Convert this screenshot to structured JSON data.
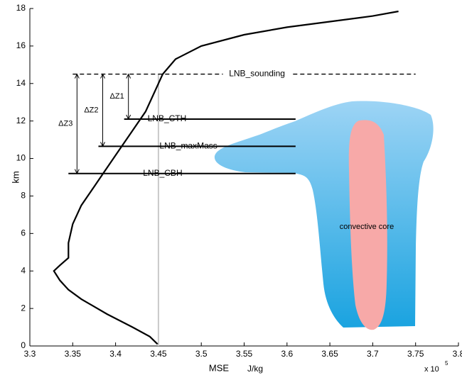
{
  "chart_data": {
    "type": "line",
    "xlabel": "MSE",
    "xunit": "J/kg",
    "ylabel": "km",
    "x_multiplier": "x 10",
    "x_exponent": "5",
    "xlim": [
      3.3,
      3.8
    ],
    "xticks": [
      3.3,
      3.35,
      3.4,
      3.45,
      3.5,
      3.55,
      3.6,
      3.65,
      3.7,
      3.75,
      3.8
    ],
    "ylim": [
      0,
      18
    ],
    "yticks": [
      0,
      2,
      4,
      6,
      8,
      10,
      12,
      14,
      16,
      18
    ],
    "series": [
      {
        "color": "#000000",
        "x": [
          3.449,
          3.44,
          3.42,
          3.39,
          3.36,
          3.345,
          3.335,
          3.328,
          3.335,
          3.345,
          3.345,
          3.35,
          3.36,
          3.375,
          3.39,
          3.405,
          3.42,
          3.435,
          3.445,
          3.455,
          3.47,
          3.5,
          3.55,
          3.6,
          3.65,
          3.7,
          3.73
        ],
        "values": [
          0.1,
          0.5,
          1.0,
          1.7,
          2.5,
          3.0,
          3.5,
          4.0,
          4.3,
          4.7,
          5.5,
          6.5,
          7.5,
          8.5,
          9.5,
          10.5,
          11.5,
          12.5,
          13.5,
          14.5,
          15.3,
          16.0,
          16.6,
          17.0,
          17.3,
          17.6,
          17.85
        ]
      }
    ],
    "reference_line": {
      "x": 3.45,
      "ylim": [
        0,
        14.5
      ],
      "color": "#c8c8c8"
    },
    "levels": [
      {
        "label": "LNB_sounding",
        "y": 14.5,
        "x": [
          3.35,
          3.75
        ],
        "label_x": 3.565,
        "dashed": true
      },
      {
        "label": "LNB_CTH",
        "y": 12.1,
        "x": [
          3.41,
          3.61
        ],
        "label_x": 3.46,
        "dashed": false
      },
      {
        "label": "LNB_maxMass",
        "y": 10.65,
        "x": [
          3.38,
          3.61
        ],
        "label_x": 3.485,
        "dashed": false
      },
      {
        "label": "LNB_CBH",
        "y": 9.2,
        "x": [
          3.345,
          3.61
        ],
        "label_x": 3.455,
        "dashed": false
      }
    ],
    "arrows": [
      {
        "label": "ΔZ1",
        "x": 3.415,
        "y": [
          14.5,
          12.1
        ]
      },
      {
        "label": "ΔZ2",
        "x": 3.385,
        "y": [
          14.5,
          10.65
        ]
      },
      {
        "label": "ΔZ3",
        "x": 3.355,
        "y": [
          14.5,
          9.2
        ]
      }
    ],
    "cloud_label": "convective core"
  }
}
